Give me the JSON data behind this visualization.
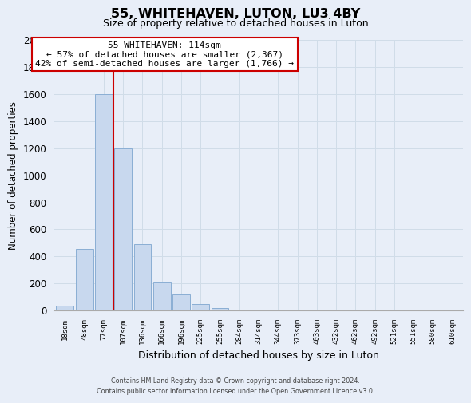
{
  "title": "55, WHITEHAVEN, LUTON, LU3 4BY",
  "subtitle": "Size of property relative to detached houses in Luton",
  "xlabel": "Distribution of detached houses by size in Luton",
  "ylabel": "Number of detached properties",
  "bar_labels": [
    "18sqm",
    "48sqm",
    "77sqm",
    "107sqm",
    "136sqm",
    "166sqm",
    "196sqm",
    "225sqm",
    "255sqm",
    "284sqm",
    "314sqm",
    "344sqm",
    "373sqm",
    "403sqm",
    "432sqm",
    "462sqm",
    "492sqm",
    "521sqm",
    "551sqm",
    "580sqm",
    "610sqm"
  ],
  "bar_values": [
    35,
    455,
    1600,
    1200,
    490,
    210,
    120,
    50,
    20,
    5,
    0,
    0,
    0,
    0,
    0,
    0,
    0,
    0,
    0,
    0,
    0
  ],
  "bar_color": "#c8d8ee",
  "bar_edge_color": "#8aaed4",
  "ylim": [
    0,
    2000
  ],
  "yticks": [
    0,
    200,
    400,
    600,
    800,
    1000,
    1200,
    1400,
    1600,
    1800,
    2000
  ],
  "property_line_color": "#cc0000",
  "annotation_text": "55 WHITEHAVEN: 114sqm\n← 57% of detached houses are smaller (2,367)\n42% of semi-detached houses are larger (1,766) →",
  "annotation_box_color": "#ffffff",
  "annotation_box_edge": "#cc0000",
  "footer_line1": "Contains HM Land Registry data © Crown copyright and database right 2024.",
  "footer_line2": "Contains public sector information licensed under the Open Government Licence v3.0.",
  "grid_color": "#d0dce8",
  "background_color": "#e8eef8"
}
